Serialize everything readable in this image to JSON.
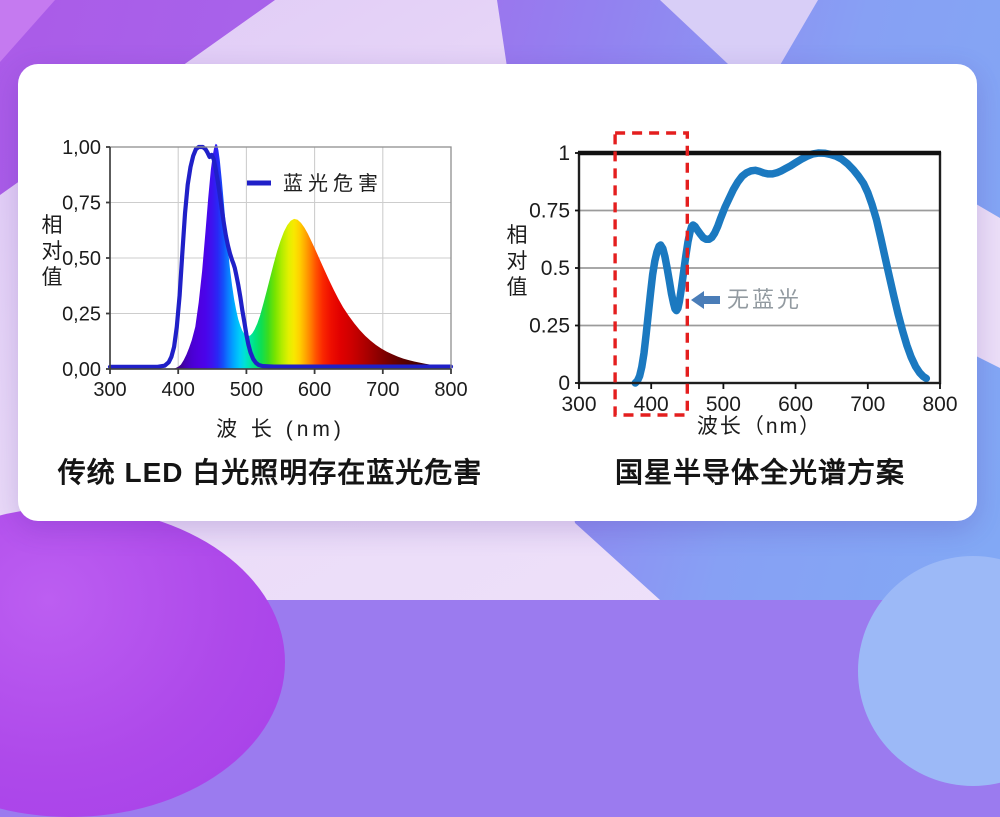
{
  "card": {
    "background": "#ffffff"
  },
  "background_palette": {
    "purple_top_left": "#ab5be8",
    "blue_right": "#82a9f5",
    "lavender_band": "#eadbf8",
    "purple_blob": "#ae49ea",
    "light_blue_circle": "#9cb9f7"
  },
  "charts_section": {
    "left": {
      "caption": "传统 LED 白光照明存在蓝光危害",
      "xlabel": "波  长 (nm)",
      "ylabel": "相对值",
      "legend_label": "蓝光危害"
    },
    "right": {
      "caption": "国星半导体全光谱方案",
      "xlabel": "波长（nm）",
      "ylabel": "相对值",
      "annotation": "无蓝光"
    }
  },
  "chart_data": [
    {
      "type": "area",
      "title": "传统 LED 白光照明存在蓝光危害",
      "xlabel": "波  长 (nm)",
      "ylabel": "相对值",
      "xlim": [
        300,
        800
      ],
      "ylim": [
        0,
        1
      ],
      "x_ticks": [
        300,
        400,
        500,
        600,
        700,
        800
      ],
      "y_ticks": [
        "1,00",
        "0,75",
        "0,50",
        "0,25",
        "0,00"
      ],
      "y_tick_values": [
        1,
        0.75,
        0.5,
        0.25,
        0
      ],
      "grid": true,
      "legend": {
        "label": "蓝光危害",
        "color": "#2020c8",
        "position": "top-center-inside"
      },
      "series": [
        {
          "name": "white-led-spectrum",
          "type": "area",
          "fill": "spectral-gradient",
          "points": [
            [
              391,
              0
            ],
            [
              396,
              0.004
            ],
            [
              400,
              0.01
            ],
            [
              404,
              0.02
            ],
            [
              408,
              0.04
            ],
            [
              412,
              0.065
            ],
            [
              416,
              0.095
            ],
            [
              420,
              0.13
            ],
            [
              425,
              0.19
            ],
            [
              430,
              0.3
            ],
            [
              435,
              0.44
            ],
            [
              440,
              0.62
            ],
            [
              444,
              0.77
            ],
            [
              448,
              0.9
            ],
            [
              451,
              0.97
            ],
            [
              453,
              1.0
            ],
            [
              455,
              1.015
            ],
            [
              457,
              1.01
            ],
            [
              459,
              0.985
            ],
            [
              461,
              0.94
            ],
            [
              464,
              0.85
            ],
            [
              467,
              0.745
            ],
            [
              470,
              0.64
            ],
            [
              473,
              0.54
            ],
            [
              476,
              0.45
            ],
            [
              479,
              0.375
            ],
            [
              482,
              0.315
            ],
            [
              485,
              0.265
            ],
            [
              488,
              0.225
            ],
            [
              491,
              0.195
            ],
            [
              494,
              0.172
            ],
            [
              497,
              0.158
            ],
            [
              500,
              0.15
            ],
            [
              503,
              0.148
            ],
            [
              506,
              0.152
            ],
            [
              509,
              0.162
            ],
            [
              512,
              0.178
            ],
            [
              516,
              0.205
            ],
            [
              520,
              0.24
            ],
            [
              525,
              0.295
            ],
            [
              530,
              0.355
            ],
            [
              535,
              0.415
            ],
            [
              540,
              0.475
            ],
            [
              545,
              0.53
            ],
            [
              550,
              0.578
            ],
            [
              555,
              0.618
            ],
            [
              560,
              0.648
            ],
            [
              565,
              0.668
            ],
            [
              570,
              0.676
            ],
            [
              575,
              0.672
            ],
            [
              580,
              0.658
            ],
            [
              585,
              0.637
            ],
            [
              590,
              0.61
            ],
            [
              595,
              0.578
            ],
            [
              600,
              0.545
            ],
            [
              607,
              0.497
            ],
            [
              614,
              0.449
            ],
            [
              621,
              0.402
            ],
            [
              628,
              0.357
            ],
            [
              635,
              0.315
            ],
            [
              642,
              0.277
            ],
            [
              650,
              0.24
            ],
            [
              658,
              0.206
            ],
            [
              666,
              0.176
            ],
            [
              674,
              0.15
            ],
            [
              682,
              0.128
            ],
            [
              690,
              0.108
            ],
            [
              698,
              0.092
            ],
            [
              706,
              0.078
            ],
            [
              714,
              0.066
            ],
            [
              722,
              0.056
            ],
            [
              730,
              0.047
            ],
            [
              738,
              0.04
            ],
            [
              746,
              0.034
            ],
            [
              754,
              0.029
            ],
            [
              762,
              0.024
            ],
            [
              770,
              0.02
            ],
            [
              778,
              0.017
            ],
            [
              786,
              0.014
            ],
            [
              794,
              0.012
            ],
            [
              800,
              0.011
            ]
          ]
        },
        {
          "name": "blue-light-hazard",
          "type": "line",
          "color": "#2020c8",
          "width": 4.2,
          "points": [
            [
              300,
              0.01
            ],
            [
              340,
              0.01
            ],
            [
              370,
              0.01
            ],
            [
              380,
              0.015
            ],
            [
              386,
              0.03
            ],
            [
              390,
              0.055
            ],
            [
              394,
              0.1
            ],
            [
              398,
              0.19
            ],
            [
              402,
              0.33
            ],
            [
              406,
              0.52
            ],
            [
              410,
              0.7
            ],
            [
              414,
              0.83
            ],
            [
              418,
              0.91
            ],
            [
              422,
              0.96
            ],
            [
              426,
              0.99
            ],
            [
              430,
              1.0
            ],
            [
              436,
              1.0
            ],
            [
              440,
              0.99
            ],
            [
              443,
              0.975
            ],
            [
              446,
              0.955
            ],
            [
              449,
              0.965
            ],
            [
              452,
              0.945
            ],
            [
              455,
              0.9
            ],
            [
              458,
              0.845
            ],
            [
              461,
              0.785
            ],
            [
              464,
              0.72
            ],
            [
              467,
              0.655
            ],
            [
              470,
              0.6
            ],
            [
              473,
              0.555
            ],
            [
              476,
              0.52
            ],
            [
              479,
              0.49
            ],
            [
              481,
              0.475
            ],
            [
              483,
              0.455
            ],
            [
              485,
              0.425
            ],
            [
              488,
              0.38
            ],
            [
              491,
              0.325
            ],
            [
              494,
              0.265
            ],
            [
              497,
              0.21
            ],
            [
              500,
              0.155
            ],
            [
              503,
              0.11
            ],
            [
              506,
              0.075
            ],
            [
              510,
              0.045
            ],
            [
              514,
              0.028
            ],
            [
              518,
              0.018
            ],
            [
              524,
              0.013
            ],
            [
              540,
              0.011
            ],
            [
              600,
              0.011
            ],
            [
              700,
              0.011
            ],
            [
              800,
              0.011
            ]
          ]
        }
      ],
      "spectral_gradient_stops": [
        {
          "nm": 390,
          "color": "#2a0050"
        },
        {
          "nm": 400,
          "color": "#3a0080"
        },
        {
          "nm": 410,
          "color": "#4400b4"
        },
        {
          "nm": 420,
          "color": "#4a00d2"
        },
        {
          "nm": 430,
          "color": "#4e00e0"
        },
        {
          "nm": 440,
          "color": "#4a04ea"
        },
        {
          "nm": 450,
          "color": "#3c14f0"
        },
        {
          "nm": 458,
          "color": "#2828f5"
        },
        {
          "nm": 466,
          "color": "#1450fa"
        },
        {
          "nm": 474,
          "color": "#0a80ff"
        },
        {
          "nm": 482,
          "color": "#00aaff"
        },
        {
          "nm": 490,
          "color": "#00ccf8"
        },
        {
          "nm": 497,
          "color": "#00e0d8"
        },
        {
          "nm": 504,
          "color": "#00e6ae"
        },
        {
          "nm": 512,
          "color": "#00e382"
        },
        {
          "nm": 522,
          "color": "#0ede52"
        },
        {
          "nm": 532,
          "color": "#3cdc1e"
        },
        {
          "nm": 542,
          "color": "#78e400"
        },
        {
          "nm": 552,
          "color": "#b2ec00"
        },
        {
          "nm": 562,
          "color": "#e2f000"
        },
        {
          "nm": 570,
          "color": "#f8e800"
        },
        {
          "nm": 578,
          "color": "#ffd000"
        },
        {
          "nm": 586,
          "color": "#ffaa00"
        },
        {
          "nm": 594,
          "color": "#ff8000"
        },
        {
          "nm": 602,
          "color": "#ff5200"
        },
        {
          "nm": 612,
          "color": "#fa2800"
        },
        {
          "nm": 624,
          "color": "#ee0e00"
        },
        {
          "nm": 638,
          "color": "#e00000"
        },
        {
          "nm": 655,
          "color": "#cc0000"
        },
        {
          "nm": 675,
          "color": "#ac0000"
        },
        {
          "nm": 695,
          "color": "#8a0000"
        },
        {
          "nm": 715,
          "color": "#6c0000"
        },
        {
          "nm": 735,
          "color": "#540000"
        },
        {
          "nm": 760,
          "color": "#400000"
        },
        {
          "nm": 800,
          "color": "#2e0000"
        }
      ]
    },
    {
      "type": "line",
      "title": "国星半导体全光谱方案",
      "xlabel": "波长（nm）",
      "ylabel": "相对值",
      "xlim": [
        300,
        800
      ],
      "ylim": [
        0,
        1
      ],
      "x_ticks": [
        300,
        400,
        500,
        600,
        700,
        800
      ],
      "y_ticks": [
        "1",
        "0.75",
        "0.5",
        "0.25",
        "0"
      ],
      "y_tick_values": [
        1,
        0.75,
        0.5,
        0.25,
        0
      ],
      "grid": true,
      "series": [
        {
          "name": "full-spectrum",
          "type": "line",
          "color": "#1b79c0",
          "width": 7.5,
          "points": [
            [
              378,
              0
            ],
            [
              381,
              0.01
            ],
            [
              384,
              0.03
            ],
            [
              387,
              0.07
            ],
            [
              390,
              0.13
            ],
            [
              393,
              0.21
            ],
            [
              396,
              0.3
            ],
            [
              399,
              0.39
            ],
            [
              402,
              0.47
            ],
            [
              405,
              0.53
            ],
            [
              408,
              0.57
            ],
            [
              411,
              0.595
            ],
            [
              413,
              0.6
            ],
            [
              416,
              0.585
            ],
            [
              419,
              0.55
            ],
            [
              422,
              0.5
            ],
            [
              425,
              0.445
            ],
            [
              428,
              0.39
            ],
            [
              431,
              0.345
            ],
            [
              433,
              0.322
            ],
            [
              435,
              0.315
            ],
            [
              437,
              0.325
            ],
            [
              439,
              0.355
            ],
            [
              442,
              0.415
            ],
            [
              445,
              0.485
            ],
            [
              448,
              0.555
            ],
            [
              451,
              0.615
            ],
            [
              454,
              0.66
            ],
            [
              456,
              0.68
            ],
            [
              458,
              0.687
            ],
            [
              461,
              0.68
            ],
            [
              464,
              0.665
            ],
            [
              468,
              0.648
            ],
            [
              472,
              0.632
            ],
            [
              476,
              0.625
            ],
            [
              480,
              0.625
            ],
            [
              484,
              0.633
            ],
            [
              488,
              0.652
            ],
            [
              492,
              0.68
            ],
            [
              496,
              0.715
            ],
            [
              502,
              0.762
            ],
            [
              508,
              0.803
            ],
            [
              514,
              0.842
            ],
            [
              520,
              0.874
            ],
            [
              526,
              0.899
            ],
            [
              532,
              0.914
            ],
            [
              538,
              0.922
            ],
            [
              544,
              0.925
            ],
            [
              550,
              0.92
            ],
            [
              556,
              0.913
            ],
            [
              562,
              0.909
            ],
            [
              568,
              0.909
            ],
            [
              574,
              0.914
            ],
            [
              580,
              0.922
            ],
            [
              586,
              0.932
            ],
            [
              593,
              0.944
            ],
            [
              600,
              0.958
            ],
            [
              608,
              0.973
            ],
            [
              616,
              0.986
            ],
            [
              624,
              0.996
            ],
            [
              632,
              1.0
            ],
            [
              640,
              0.999
            ],
            [
              648,
              0.994
            ],
            [
              656,
              0.986
            ],
            [
              664,
              0.973
            ],
            [
              672,
              0.953
            ],
            [
              680,
              0.927
            ],
            [
              687,
              0.9
            ],
            [
              694,
              0.868
            ],
            [
              700,
              0.828
            ],
            [
              706,
              0.775
            ],
            [
              712,
              0.71
            ],
            [
              718,
              0.63
            ],
            [
              724,
              0.545
            ],
            [
              730,
              0.46
            ],
            [
              736,
              0.378
            ],
            [
              742,
              0.3
            ],
            [
              748,
              0.228
            ],
            [
              754,
              0.165
            ],
            [
              760,
              0.113
            ],
            [
              766,
              0.072
            ],
            [
              772,
              0.044
            ],
            [
              777,
              0.028
            ],
            [
              781,
              0.02
            ]
          ]
        }
      ],
      "highlight_box": {
        "x_range": [
          350,
          450
        ],
        "color": "#e41e1e",
        "style": "dashed"
      },
      "annotation": {
        "text": "无蓝光",
        "text_color": "#929aa0",
        "arrow_color": "#4a7db8",
        "x": 433,
        "y": 0.35
      }
    }
  ]
}
